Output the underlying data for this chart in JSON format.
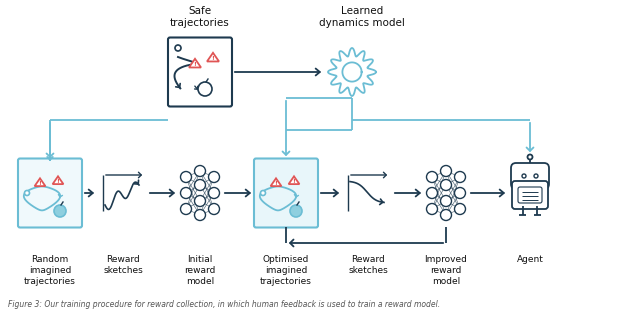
{
  "bg_color": "#ffffff",
  "dark_teal": "#1e3a4f",
  "mid_teal": "#2d6a8a",
  "light_blue": "#6bbdd4",
  "light_blue2": "#8ecfdf",
  "red_color": "#e05555",
  "box_border_dark": "#1e3a4f",
  "box_border_light": "#6bbdd4",
  "box_fill_light": "#e8f6fa",
  "arrow_dark": "#1e3a4f",
  "arrow_light": "#6bbdd4",
  "labels": {
    "safe_traj": "Safe\ntrajectories",
    "learned_dyn": "Learned\ndynamics model",
    "random_traj": "Random\nimagined\ntrajectories",
    "reward_sketch1": "Reward\nsketches",
    "initial_reward": "Initial\nreward\nmodel",
    "optimised_traj": "Optimised\nimagined\ntrajectories",
    "reward_sketch2": "Reward\nsketches",
    "improved_reward": "Improved\nreward\nmodel",
    "agent": "Agent"
  },
  "caption": "Figure 3: Our training procedure for reward collection, in which human feedback is used to train a reward model.",
  "fig_width": 6.4,
  "fig_height": 3.14
}
